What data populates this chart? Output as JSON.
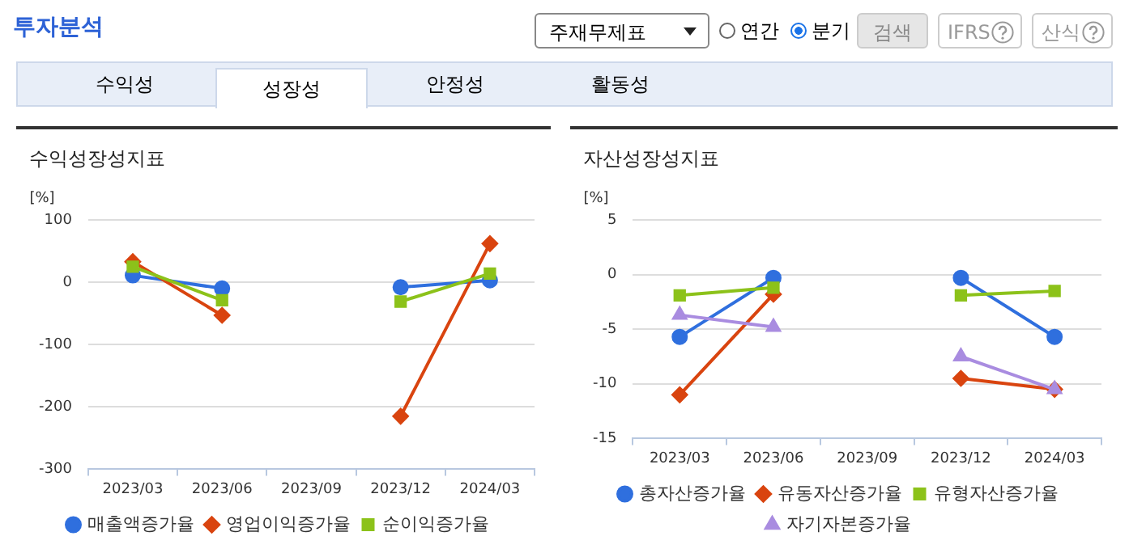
{
  "chart_data": [
    {
      "type": "line",
      "title": "수익성장성지표",
      "ylabel": "[%]",
      "annotations": [
        "투자분석",
        "주재무제표",
        "연간",
        "분기",
        "검색",
        "IFRS",
        "산식",
        "수익성",
        "성장성",
        "안정성",
        "활동성"
      ],
      "categories": [
        "2023/03",
        "2023/06",
        "2023/09",
        "2023/12",
        "2024/03"
      ],
      "series": [
        {
          "name": "매출액증가율",
          "color": "#2f6fde",
          "marker": "circle",
          "values": [
            11,
            -10,
            null,
            -8,
            3
          ]
        },
        {
          "name": "영업이익증가율",
          "color": "#d9440f",
          "marker": "diamond",
          "values": [
            33,
            -53,
            null,
            -215,
            62
          ]
        },
        {
          "name": "순이익증가율",
          "color": "#8cc21a",
          "marker": "square",
          "values": [
            25,
            -29,
            null,
            -31,
            14
          ]
        }
      ],
      "ylim": [
        -300,
        100
      ],
      "yticks": [
        -300,
        -200,
        -100,
        0,
        100
      ],
      "grid": "y",
      "legend": "bottom"
    },
    {
      "type": "line",
      "title": "자산성장성지표",
      "ylabel": "[%]",
      "categories": [
        "2023/03",
        "2023/06",
        "2023/09",
        "2023/12",
        "2024/03"
      ],
      "series": [
        {
          "name": "총자산증가율",
          "color": "#2f6fde",
          "marker": "circle",
          "values": [
            -5.7,
            -0.3,
            null,
            -0.3,
            -5.7
          ]
        },
        {
          "name": "유동자산증가율",
          "color": "#d9440f",
          "marker": "diamond",
          "values": [
            -11.0,
            -1.8,
            null,
            -9.5,
            -10.5
          ]
        },
        {
          "name": "유형자산증가율",
          "color": "#8cc21a",
          "marker": "square",
          "values": [
            -1.9,
            -1.2,
            null,
            -1.9,
            -1.5
          ]
        },
        {
          "name": "자기자본증가율",
          "color": "#a98ce0",
          "marker": "triangle",
          "values": [
            -3.7,
            -4.8,
            null,
            -7.5,
            -10.5
          ]
        }
      ],
      "ylim": [
        -15,
        5
      ],
      "yticks": [
        -15,
        -10,
        -5,
        0,
        5
      ],
      "grid": "y",
      "legend": "bottom"
    }
  ]
}
